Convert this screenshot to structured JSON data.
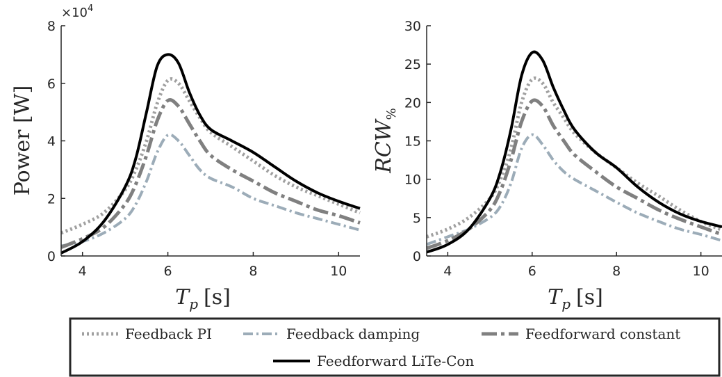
{
  "chart_data": [
    {
      "type": "line",
      "xlabel": "T_p [s]",
      "xlabel_parts": {
        "main": "T",
        "sub": "p",
        "unit": "[s]"
      },
      "ylabel": "Power [W]",
      "y_multiplier": "×10⁴",
      "y_multiplier_parts": {
        "base": "×10",
        "exp": "4"
      },
      "xlim": [
        3.5,
        10.5
      ],
      "ylim": [
        0,
        8
      ],
      "xticks": [
        "4",
        "6",
        "8",
        "10"
      ],
      "yticks": [
        "0",
        "2",
        "4",
        "6",
        "8"
      ],
      "x": [
        3.5,
        4,
        4.5,
        5,
        5.25,
        5.5,
        5.75,
        6,
        6.25,
        6.5,
        6.75,
        7,
        7.5,
        8,
        8.5,
        9,
        9.5,
        10,
        10.5
      ],
      "series": [
        {
          "name": "Feedback PI",
          "values": [
            0.8,
            1.1,
            1.5,
            2.3,
            3.0,
            4.0,
            5.3,
            6.1,
            6.0,
            5.4,
            4.8,
            4.3,
            3.8,
            3.3,
            2.8,
            2.4,
            2.1,
            1.8,
            1.5
          ]
        },
        {
          "name": "Feedback damping",
          "values": [
            0.35,
            0.5,
            0.8,
            1.3,
            1.8,
            2.6,
            3.6,
            4.2,
            4.0,
            3.5,
            3.0,
            2.7,
            2.4,
            2.0,
            1.75,
            1.5,
            1.3,
            1.1,
            0.9
          ]
        },
        {
          "name": "Feedforward constant",
          "values": [
            0.3,
            0.6,
            1.0,
            1.8,
            2.5,
            3.5,
            4.7,
            5.4,
            5.2,
            4.6,
            4.0,
            3.5,
            3.0,
            2.6,
            2.2,
            1.9,
            1.6,
            1.4,
            1.15
          ]
        },
        {
          "name": "Feedforward LiTe-Con",
          "values": [
            0.1,
            0.5,
            1.2,
            2.4,
            3.4,
            5.0,
            6.6,
            7.0,
            6.7,
            5.7,
            4.9,
            4.4,
            4.0,
            3.6,
            3.1,
            2.6,
            2.2,
            1.9,
            1.65
          ]
        }
      ]
    },
    {
      "type": "line",
      "xlabel": "T_p [s]",
      "xlabel_parts": {
        "main": "T",
        "sub": "p",
        "unit": "[s]"
      },
      "ylabel": "RCW_%",
      "ylabel_parts": {
        "main": "RCW",
        "sub": "%"
      },
      "xlim": [
        3.5,
        10.5
      ],
      "ylim": [
        0,
        30
      ],
      "xticks": [
        "4",
        "6",
        "8",
        "10"
      ],
      "yticks": [
        "0",
        "5",
        "10",
        "15",
        "20",
        "25",
        "30"
      ],
      "x": [
        3.5,
        4,
        4.5,
        5,
        5.25,
        5.5,
        5.75,
        6,
        6.25,
        6.5,
        6.75,
        7,
        7.5,
        8,
        8.5,
        9,
        9.5,
        10,
        10.5
      ],
      "series": [
        {
          "name": "Feedback PI",
          "values": [
            2.5,
            3.5,
            5.0,
            7.5,
            10.0,
            14.0,
            20.0,
            23.0,
            22.5,
            20.0,
            18.0,
            16.0,
            13.5,
            11.5,
            9.5,
            7.8,
            6.0,
            4.5,
            3.4
          ]
        },
        {
          "name": "Feedback damping",
          "values": [
            1.5,
            2.5,
            3.5,
            5.0,
            6.5,
            9.5,
            14.0,
            15.8,
            14.5,
            12.5,
            11.0,
            10.0,
            8.5,
            7.0,
            5.6,
            4.5,
            3.5,
            2.8,
            2.0
          ]
        },
        {
          "name": "Feedforward constant",
          "values": [
            1.0,
            2.0,
            3.5,
            6.0,
            8.5,
            12.5,
            17.5,
            20.2,
            19.5,
            17.0,
            15.0,
            13.2,
            11.0,
            9.0,
            7.5,
            6.0,
            4.8,
            3.8,
            2.8
          ]
        },
        {
          "name": "Feedforward LiTe-Con",
          "values": [
            0.5,
            1.5,
            3.5,
            7.5,
            11.0,
            16.5,
            23.5,
            26.5,
            25.5,
            22.0,
            19.0,
            16.5,
            13.5,
            11.5,
            9.0,
            7.0,
            5.5,
            4.5,
            3.8
          ]
        }
      ]
    }
  ],
  "legend": {
    "items": [
      "Feedback PI",
      "Feedback damping",
      "Feedforward constant",
      "Feedforward LiTe-Con"
    ]
  },
  "styles": {
    "Feedback PI": {
      "color": "#a0a0a0",
      "dash": "3,4",
      "width": 5
    },
    "Feedback damping": {
      "color": "#9cacb8",
      "dash": "14,5,3,5",
      "width": 4
    },
    "Feedforward constant": {
      "color": "#808080",
      "dash": "22,6,5,6",
      "width": 5
    },
    "Feedforward LiTe-Con": {
      "color": "#000000",
      "dash": "",
      "width": 4
    }
  }
}
